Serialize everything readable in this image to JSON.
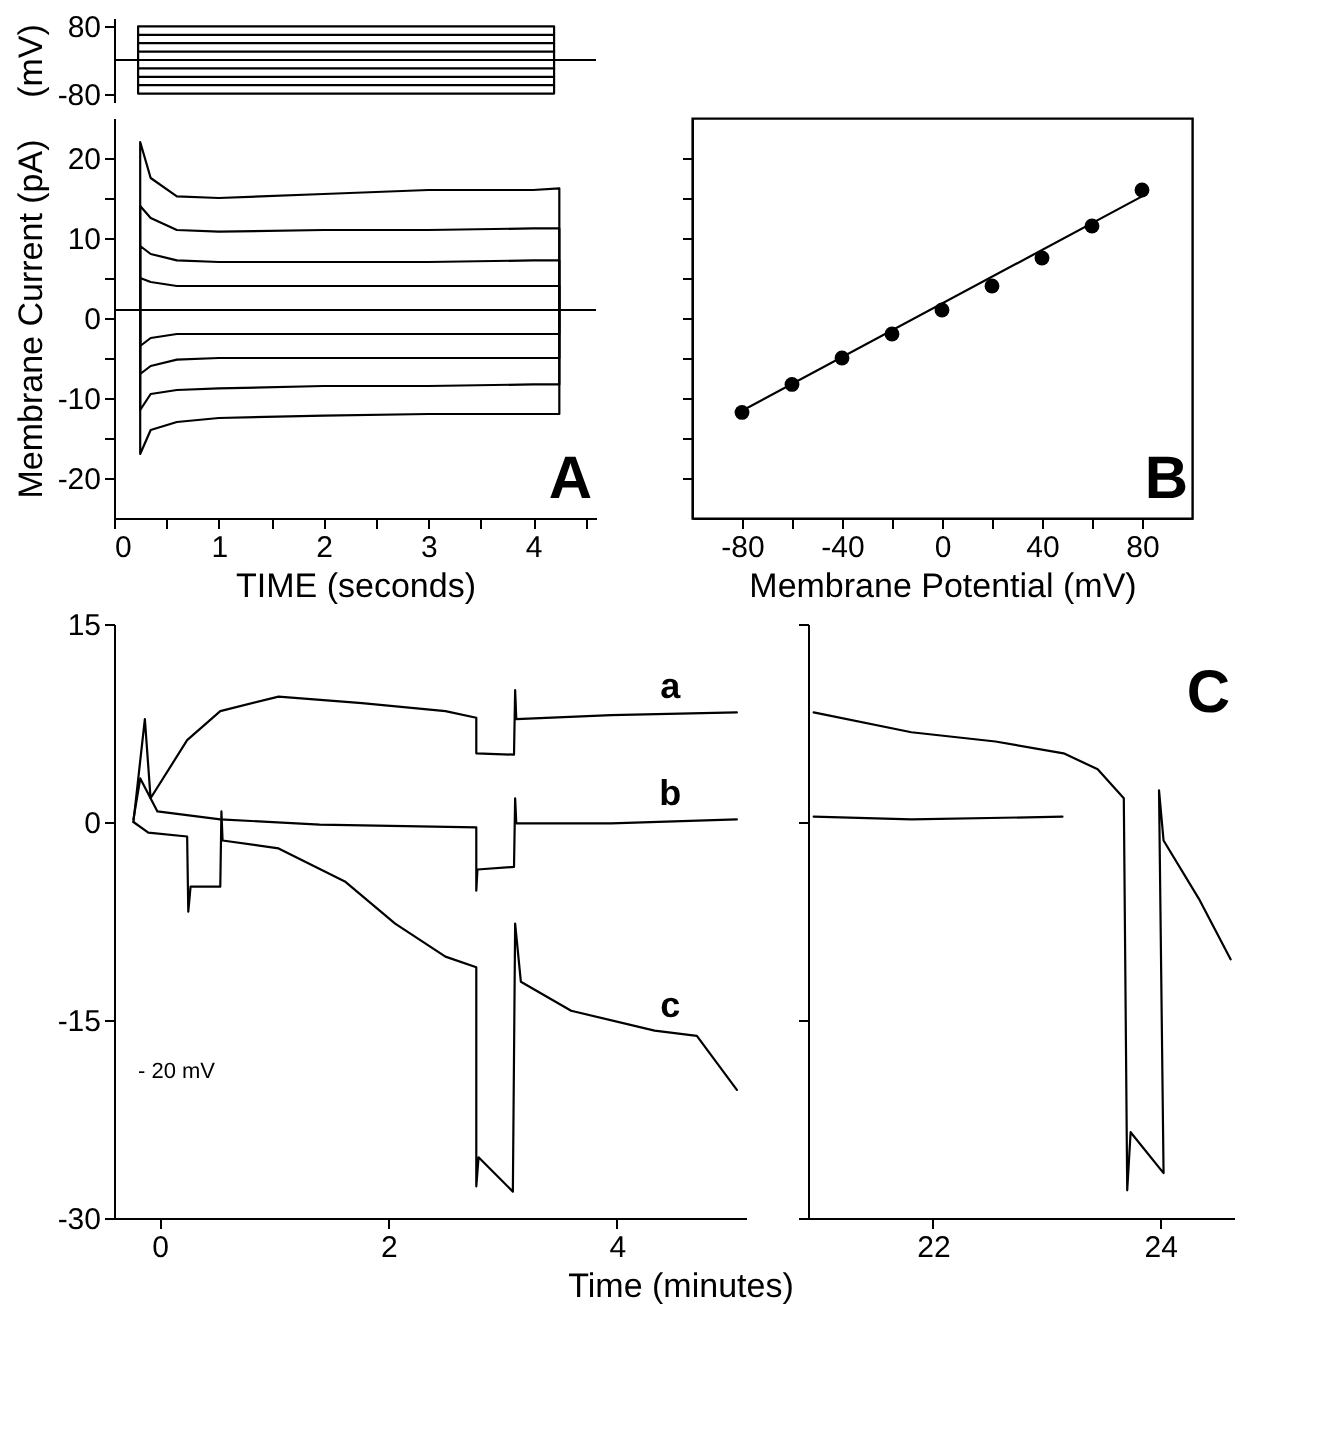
{
  "chart_data": [
    {
      "type": "line",
      "ylabel": "(mV)",
      "xlim": [
        0,
        4.6
      ],
      "ylim": [
        -100,
        100
      ],
      "yticks": [
        80,
        -80
      ],
      "tick_labels": "y",
      "line_style": "solid",
      "series": [
        {
          "color": "#000000",
          "x": [
            0,
            0.23,
            0.23,
            4.2,
            4.2,
            4.6
          ],
          "values": [
            0,
            0,
            80,
            80,
            0,
            0
          ]
        },
        {
          "color": "#000000",
          "x": [
            0.23,
            4.2
          ],
          "values": [
            60,
            60
          ]
        },
        {
          "color": "#000000",
          "x": [
            0.23,
            4.2
          ],
          "values": [
            40,
            40
          ]
        },
        {
          "color": "#000000",
          "x": [
            0.23,
            4.2
          ],
          "values": [
            20,
            20
          ]
        },
        {
          "color": "#000000",
          "x": [
            0,
            4.6
          ],
          "values": [
            0,
            0
          ]
        },
        {
          "color": "#000000",
          "x": [
            0.23,
            4.2
          ],
          "values": [
            -20,
            -20
          ]
        },
        {
          "color": "#000000",
          "x": [
            0.23,
            4.2
          ],
          "values": [
            -40,
            -40
          ]
        },
        {
          "color": "#000000",
          "x": [
            0.23,
            4.2
          ],
          "values": [
            -60,
            -60
          ]
        },
        {
          "color": "#000000",
          "x": [
            0,
            0.23,
            0.23,
            4.2,
            4.2,
            4.6
          ],
          "values": [
            0,
            0,
            -80,
            -80,
            0,
            0
          ]
        }
      ]
    },
    {
      "type": "line",
      "xlabel": "TIME (seconds)",
      "ylabel": "Membrane Current (pA)",
      "xlim": [
        0,
        4.6
      ],
      "ylim": [
        -25,
        25
      ],
      "xticks": [
        0,
        {
          "value": 0.5,
          "label": null
        },
        1,
        {
          "value": 1.5,
          "label": null
        },
        2,
        {
          "value": 2.5,
          "label": null
        },
        3,
        {
          "value": 3.5,
          "label": null
        },
        4,
        {
          "value": 4.5,
          "label": null
        }
      ],
      "yticks": [
        -20,
        {
          "value": -15,
          "label": null
        },
        -10,
        {
          "value": -5,
          "label": null
        },
        0,
        {
          "value": 5,
          "label": null
        },
        10,
        {
          "value": 15,
          "label": null
        },
        20
      ],
      "annotations": [
        "A"
      ],
      "line_style": "solid",
      "x": [
        0,
        0.25,
        0.25,
        0.35,
        0.6,
        1,
        2,
        3,
        4,
        4.25,
        4.25,
        4.6
      ],
      "series": [
        {
          "color": "#000000",
          "values": [
            1,
            1,
            22,
            17.5,
            15.2,
            15,
            15.5,
            16,
            16,
            16.2,
            1,
            1
          ]
        },
        {
          "color": "#000000",
          "values": [
            1,
            1,
            14,
            12.5,
            11,
            10.8,
            11,
            11,
            11.2,
            11.2,
            1,
            1
          ]
        },
        {
          "color": "#000000",
          "values": [
            1,
            1,
            9,
            8,
            7.2,
            7,
            7,
            7,
            7.2,
            7.2,
            1,
            1
          ]
        },
        {
          "color": "#000000",
          "values": [
            1,
            1,
            5,
            4.5,
            4,
            4,
            4,
            4,
            4,
            4,
            1,
            1
          ]
        },
        {
          "color": "#000000",
          "values": [
            1,
            1,
            1,
            1,
            1,
            1,
            1,
            1,
            1,
            1,
            1,
            1
          ]
        },
        {
          "color": "#000000",
          "values": [
            1,
            1,
            -3.5,
            -2.5,
            -2,
            -2,
            -2,
            -2,
            -2,
            -2,
            1,
            1
          ]
        },
        {
          "color": "#000000",
          "values": [
            1,
            1,
            -7,
            -6,
            -5.2,
            -5,
            -5,
            -5,
            -5,
            -5,
            1,
            1
          ]
        },
        {
          "color": "#000000",
          "values": [
            1,
            1,
            -11.5,
            -9.5,
            -9,
            -8.8,
            -8.5,
            -8.5,
            -8.3,
            -8.3,
            1,
            1
          ]
        },
        {
          "color": "#000000",
          "values": [
            1,
            1,
            -17,
            -14,
            -13,
            -12.5,
            -12.2,
            -12,
            -12,
            -12,
            1,
            1
          ]
        }
      ]
    },
    {
      "type": "scatter",
      "xlabel": "Membrane Potential (mV)",
      "xlim": [
        -100,
        100
      ],
      "ylim": [
        -25,
        25
      ],
      "tick_labels": "x",
      "xticks": [
        -80,
        {
          "value": -60,
          "label": null
        },
        -40,
        {
          "value": -20,
          "label": null
        },
        0,
        {
          "value": 20,
          "label": null
        },
        40,
        {
          "value": 60,
          "label": null
        },
        80
      ],
      "yticks": [
        {
          "value": -20,
          "label": null
        },
        {
          "value": -15,
          "label": null
        },
        {
          "value": -10,
          "label": null
        },
        {
          "value": -5,
          "label": null
        },
        {
          "value": 0,
          "label": null
        },
        {
          "value": 5,
          "label": null
        },
        {
          "value": 10,
          "label": null
        },
        {
          "value": 15,
          "label": null
        },
        {
          "value": 20,
          "label": null
        }
      ],
      "annotations": [
        "B"
      ],
      "series": [
        {
          "type": "scatter",
          "marker": "circle",
          "color": "#000000",
          "x": [
            -80,
            -60,
            -40,
            -20,
            0,
            20,
            40,
            60,
            80
          ],
          "values": [
            -11.8,
            -8.3,
            -5,
            -2,
            1,
            4,
            7.5,
            11.5,
            16
          ]
        },
        {
          "type": "line",
          "color": "#000000",
          "x": [
            -80,
            80
          ],
          "values": [
            -11.6,
            15.2
          ]
        }
      ]
    },
    {
      "type": "line",
      "xlim": [
        -0.4,
        5.13
      ],
      "ylim": [
        -30,
        15
      ],
      "xticks": [
        0,
        2,
        4
      ],
      "yticks": [
        -30,
        -15,
        0,
        15
      ],
      "xlabel": "Time (minutes)",
      "line_style": "solid",
      "annotations": [
        "- 20 mV"
      ],
      "series": [
        {
          "name": "a",
          "color": "#000000",
          "x": [
            -0.23,
            -0.13,
            -0.08,
            0.24,
            0.53,
            1.04,
            1.77,
            2.5,
            2.77,
            2.77,
            3.1,
            3.11,
            3.12,
            3.95,
            5.05
          ],
          "values": [
            0,
            7.8,
            1.8,
            6.2,
            8.4,
            9.5,
            9.0,
            8.4,
            7.9,
            5.2,
            5.1,
            10,
            7.8,
            8.1,
            8.3
          ]
        },
        {
          "name": "b",
          "color": "#000000",
          "x": [
            -0.23,
            -0.17,
            -0.02,
            0.53,
            1.4,
            2.77,
            2.77,
            2.78,
            3.1,
            3.11,
            3.12,
            3.95,
            5.05
          ],
          "values": [
            0.2,
            3.3,
            0.8,
            0.2,
            -0.2,
            -0.4,
            -5.2,
            -3.6,
            -3.4,
            1.8,
            -0.1,
            -0.1,
            0.2
          ]
        },
        {
          "name": "c",
          "color": "#000000",
          "x": [
            -0.23,
            -0.1,
            0.24,
            0.25,
            0.27,
            0.53,
            0.54,
            0.55,
            1.04,
            1.62,
            2.06,
            2.5,
            2.77,
            2.77,
            2.79,
            3.09,
            3.11,
            3.16,
            3.6,
            4.33,
            4.7,
            5.05
          ],
          "values": [
            0,
            -0.8,
            -1.1,
            -6.8,
            -4.9,
            -4.9,
            0.8,
            -1.4,
            -2.0,
            -4.5,
            -7.7,
            -10.2,
            -11,
            -27.6,
            -25.4,
            -28,
            -7.7,
            -12.1,
            -14.3,
            -15.8,
            -16.2,
            -20.3
          ]
        }
      ]
    },
    {
      "type": "line",
      "xlim": [
        20.9,
        24.65
      ],
      "ylim": [
        -30,
        15
      ],
      "xticks": [
        22,
        24
      ],
      "yticks": [
        -30,
        -15,
        0,
        15
      ],
      "tick_labels": "x",
      "line_style": "solid",
      "annotations": [
        "C"
      ],
      "series": [
        {
          "color": "#000000",
          "x": [
            20.95,
            21.81,
            22.55,
            23.15,
            23.45,
            23.68,
            23.71,
            23.74,
            24.03,
            23.99,
            24.03,
            24.34,
            24.62
          ],
          "values": [
            8.3,
            6.8,
            6.1,
            5.2,
            4.0,
            1.8,
            -27.9,
            -23.5,
            -26.6,
            2.4,
            -1.4,
            -5.8,
            -10.4
          ]
        },
        {
          "color": "#000000",
          "x": [
            20.95,
            21.81,
            23.14
          ],
          "values": [
            0.4,
            0.2,
            0.4
          ]
        }
      ]
    }
  ]
}
